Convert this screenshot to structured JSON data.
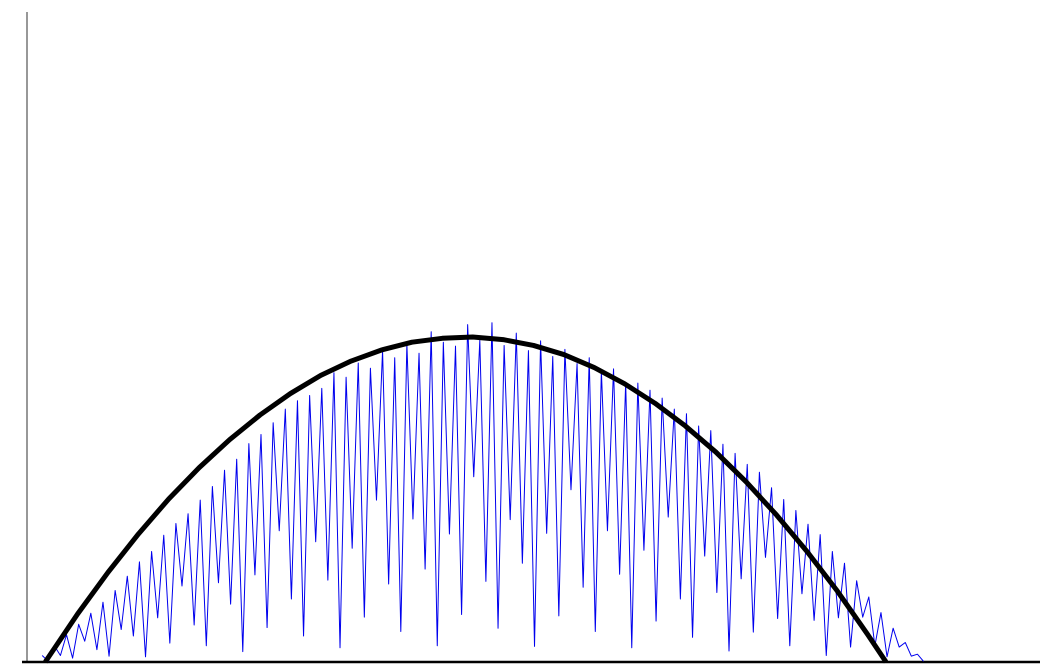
{
  "chart_data": {
    "type": "line",
    "xlim": [
      0,
      100
    ],
    "ylim": [
      0,
      100
    ],
    "series": [
      {
        "color": "#0000ee",
        "width": 1,
        "x": [
          1.5,
          2.1,
          2.7,
          3.3,
          3.9,
          4.5,
          5.1,
          5.7,
          6.3,
          6.9,
          7.5,
          8.1,
          8.7,
          9.3,
          9.9,
          10.5,
          11.1,
          11.7,
          12.3,
          12.9,
          13.5,
          14.1,
          14.7,
          15.3,
          15.9,
          16.5,
          17.1,
          17.7,
          18.3,
          18.9,
          19.5,
          20.1,
          20.7,
          21.3,
          21.9,
          22.5,
          23.1,
          23.7,
          24.3,
          24.9,
          25.5,
          26.1,
          26.7,
          27.3,
          27.9,
          28.5,
          29.1,
          29.7,
          30.3,
          30.9,
          31.5,
          32.1,
          32.7,
          33.3,
          33.9,
          34.5,
          35.1,
          35.7,
          36.3,
          36.9,
          37.5,
          38.1,
          38.7,
          39.3,
          39.9,
          40.5,
          41.1,
          41.7,
          42.3,
          42.9,
          43.5,
          44.1,
          44.7,
          45.3,
          45.9,
          46.5,
          47.1,
          47.7,
          48.3,
          48.9,
          49.5,
          50.1,
          50.7,
          51.3,
          51.9,
          52.5,
          53.1,
          53.7,
          54.3,
          54.9,
          55.5,
          56.1,
          56.7,
          57.3,
          57.9,
          58.5,
          59.1,
          59.7,
          60.3,
          60.9,
          61.5,
          62.1,
          62.7,
          63.3,
          63.9,
          64.5,
          65.1,
          65.7,
          66.3,
          66.9,
          67.5,
          68.1,
          68.7,
          69.3,
          69.9,
          70.5,
          71.1,
          71.7,
          72.3,
          72.9,
          73.5,
          74.1,
          74.7,
          75.3,
          75.9,
          76.5,
          77.1,
          77.7,
          78.3,
          78.9,
          79.5,
          80.1,
          80.7,
          81.3,
          81.9,
          82.5,
          83.1,
          83.7,
          84.3,
          84.9,
          85.5,
          86.1,
          86.7,
          87.3,
          87.9,
          88.5
        ],
        "values": [
          1.0,
          0.1,
          2.5,
          1.0,
          4.2,
          0.6,
          5.8,
          3.2,
          7.5,
          1.9,
          9.2,
          0.9,
          11.0,
          5.0,
          13.2,
          4.0,
          15.4,
          0.8,
          17.0,
          6.8,
          19.5,
          2.9,
          21.3,
          11.7,
          22.8,
          5.7,
          24.9,
          2.5,
          27.0,
          12.2,
          29.5,
          8.9,
          31.2,
          1.6,
          33.6,
          13.4,
          35.0,
          5.3,
          36.8,
          20.2,
          38.9,
          9.7,
          40.2,
          4.0,
          41.0,
          18.5,
          42.1,
          12.6,
          44.5,
          2.2,
          43.8,
          17.5,
          46.0,
          6.9,
          45.2,
          24.9,
          47.9,
          12.0,
          46.8,
          4.7,
          48.9,
          22.0,
          47.5,
          14.3,
          50.8,
          2.5,
          49.2,
          19.7,
          48.6,
          7.3,
          51.9,
          28.5,
          49.5,
          12.4,
          52.2,
          5.2,
          48.7,
          21.9,
          50.6,
          15.2,
          47.9,
          2.4,
          49.4,
          19.8,
          47.0,
          7.1,
          48.1,
          26.5,
          45.9,
          11.5,
          46.8,
          4.7,
          44.8,
          20.2,
          45.1,
          13.5,
          43.0,
          2.2,
          42.9,
          17.2,
          41.8,
          6.3,
          40.6,
          22.3,
          38.9,
          9.7,
          38.2,
          3.8,
          36.3,
          16.3,
          35.6,
          10.7,
          33.5,
          1.7,
          32.1,
          12.8,
          30.4,
          4.6,
          29.2,
          16.1,
          26.8,
          6.7,
          25.0,
          2.5,
          23.3,
          10.5,
          21.2,
          6.4,
          19.6,
          1.0,
          17.0,
          6.8,
          15.2,
          2.3,
          12.5,
          6.9,
          10.0,
          2.5,
          7.6,
          0.8,
          5.2,
          2.3,
          3.0,
          0.9,
          1.2,
          0.1
        ]
      },
      {
        "color": "#000000",
        "width": 5,
        "x": [
          1.8,
          5,
          8,
          11,
          14,
          17,
          20,
          23,
          26,
          29,
          32,
          35,
          38,
          41,
          44,
          47,
          50,
          53,
          56,
          59,
          62,
          65,
          68,
          71,
          74,
          77,
          80,
          83,
          84.8
        ],
        "values": [
          0,
          7.4,
          13.8,
          19.7,
          25.1,
          29.9,
          34.2,
          38.0,
          41.3,
          44.1,
          46.3,
          48.0,
          49.2,
          49.8,
          50.0,
          49.6,
          48.7,
          47.3,
          45.3,
          42.8,
          39.8,
          36.3,
          32.3,
          27.7,
          22.6,
          17.0,
          10.9,
          4.2,
          0
        ]
      }
    ]
  }
}
